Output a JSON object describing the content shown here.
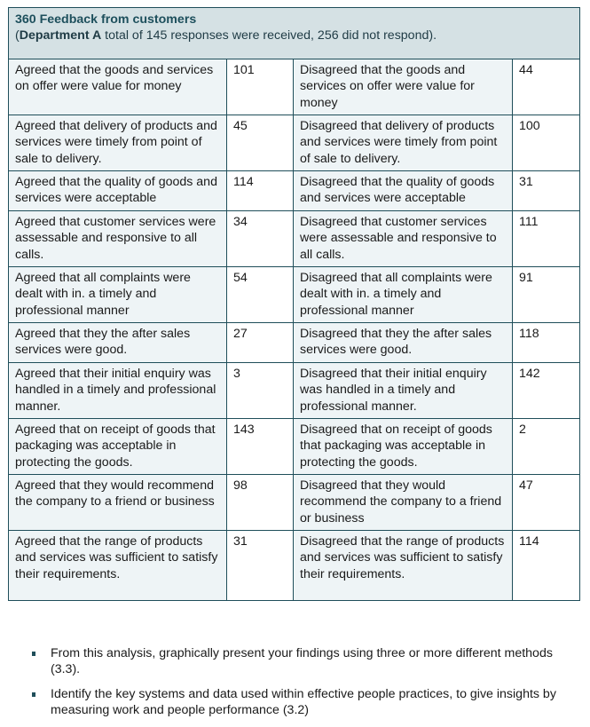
{
  "header": {
    "title": "360 Feedback from customers",
    "subtitle_prefix": "(",
    "department": "Department A",
    "subtitle_rest": " total of 145 responses were received, 256 did not respond)."
  },
  "rows": [
    {
      "agreed": "Agreed that the goods and services on offer were value for money",
      "agreed_count": "101",
      "disagreed": "Disagreed that the goods and services on offer were value for money",
      "disagreed_count": "44"
    },
    {
      "agreed": "Agreed that delivery of products and services were timely from point of sale to delivery.",
      "agreed_count": "45",
      "disagreed": "Disagreed that delivery of products and services were timely from point of sale to delivery.",
      "disagreed_count": "100"
    },
    {
      "agreed": "Agreed that the quality of goods and services were acceptable",
      "agreed_count": "114",
      "disagreed": "Disagreed that the quality of goods and services were acceptable",
      "disagreed_count": "31"
    },
    {
      "agreed": "Agreed that customer services were assessable and responsive to all calls.",
      "agreed_count": "34",
      "disagreed": "Disagreed that customer services were assessable and responsive to all calls.",
      "disagreed_count": "111"
    },
    {
      "agreed": "Agreed that all complaints were dealt with in. a timely and professional manner",
      "agreed_count": "54",
      "disagreed": "Disagreed that all complaints were dealt with in. a timely and professional manner",
      "disagreed_count": "91"
    },
    {
      "agreed": "Agreed that they the after sales services were good.",
      "agreed_count": "27",
      "disagreed": "Disagreed that they the after sales services were good.",
      "disagreed_count": "118"
    },
    {
      "agreed": "Agreed that their initial enquiry was handled in a timely and professional manner.",
      "agreed_count": "3",
      "disagreed": "Disagreed that their initial enquiry was handled in a timely and professional manner.",
      "disagreed_count": "142"
    },
    {
      "agreed": "Agreed that on receipt of goods that packaging was acceptable in protecting the goods.",
      "agreed_count": "143",
      "disagreed": "Disagreed that on receipt of goods that packaging was acceptable in protecting the goods.",
      "disagreed_count": "2"
    },
    {
      "agreed": "Agreed that they would recommend the company to a friend or business",
      "agreed_count": "98",
      "disagreed": "Disagreed that they would recommend the company to a friend or business",
      "disagreed_count": "47"
    },
    {
      "agreed": "Agreed that the range of products and services was sufficient to satisfy their requirements.",
      "agreed_count": "31",
      "disagreed": "Disagreed that the range of products and services was sufficient to satisfy their requirements.",
      "disagreed_count": "114"
    }
  ],
  "bullets": [
    "From this analysis, graphically present your findings using three or more different methods (3.3).",
    "Identify the key systems and data used within effective people practices, to give insights by measuring work and people performance (3.2)"
  ],
  "colors": {
    "header_bg": "#d5e1e4",
    "label_bg": "#eef4f6",
    "border": "#1f4e5a",
    "title": "#1d4f5c"
  }
}
